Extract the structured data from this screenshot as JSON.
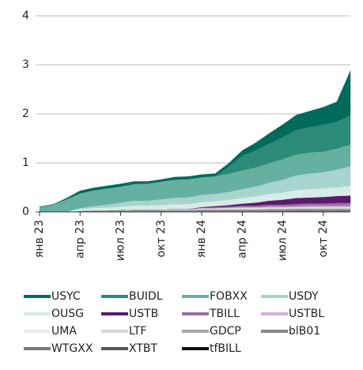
{
  "chart_data": {
    "type": "area",
    "stacked": true,
    "categories": [
      "янв 23",
      null,
      null,
      "апр 23",
      null,
      null,
      "июл 23",
      null,
      null,
      "окт 23",
      null,
      null,
      "янв 24",
      null,
      null,
      "апр 24",
      null,
      null,
      "июл 24",
      null,
      null,
      "окт 24",
      null,
      null
    ],
    "ylim": [
      0,
      4
    ],
    "yticks": [
      0,
      1,
      2,
      3,
      4
    ],
    "grid": true,
    "series": [
      {
        "name": "USYC",
        "color": "#006b5b",
        "values": [
          0,
          0,
          0.02,
          0.05,
          0.05,
          0.05,
          0.05,
          0.05,
          0.04,
          0.04,
          0.05,
          0.05,
          0.05,
          0.05,
          0.06,
          0.1,
          0.15,
          0.2,
          0.25,
          0.3,
          0.32,
          0.35,
          0.4,
          0.9
        ]
      },
      {
        "name": "BUIDL",
        "color": "#2b8a78",
        "values": [
          0,
          0,
          0,
          0,
          0,
          0,
          0,
          0,
          0,
          0,
          0,
          0,
          0,
          0,
          0.15,
          0.3,
          0.35,
          0.4,
          0.45,
          0.5,
          0.52,
          0.55,
          0.55,
          0.6
        ]
      },
      {
        "name": "FOBXX",
        "color": "#66b0a2",
        "values": [
          0.1,
          0.15,
          0.25,
          0.3,
          0.32,
          0.33,
          0.33,
          0.34,
          0.35,
          0.36,
          0.37,
          0.37,
          0.36,
          0.36,
          0.37,
          0.38,
          0.39,
          0.4,
          0.42,
          0.43,
          0.43,
          0.42,
          0.43,
          0.44
        ]
      },
      {
        "name": "USDY",
        "color": "#a7d4cc",
        "values": [
          0,
          0,
          0,
          0.02,
          0.04,
          0.06,
          0.08,
          0.1,
          0.1,
          0.12,
          0.13,
          0.14,
          0.15,
          0.15,
          0.16,
          0.18,
          0.2,
          0.23,
          0.26,
          0.3,
          0.32,
          0.33,
          0.36,
          0.4
        ]
      },
      {
        "name": "OUSG",
        "color": "#d5ece7",
        "values": [
          0,
          0,
          0.01,
          0.04,
          0.05,
          0.06,
          0.07,
          0.08,
          0.08,
          0.09,
          0.1,
          0.1,
          0.1,
          0.1,
          0.11,
          0.12,
          0.13,
          0.14,
          0.15,
          0.16,
          0.17,
          0.18,
          0.18,
          0.2
        ]
      },
      {
        "name": "USTB",
        "color": "#5a1a6b",
        "values": [
          0,
          0,
          0,
          0,
          0,
          0,
          0,
          0,
          0,
          0,
          0,
          0,
          0.01,
          0.02,
          0.03,
          0.04,
          0.06,
          0.08,
          0.1,
          0.12,
          0.12,
          0.13,
          0.14,
          0.15
        ]
      },
      {
        "name": "TBILL",
        "color": "#9b6fa8",
        "values": [
          0,
          0,
          0,
          0,
          0,
          0,
          0,
          0,
          0,
          0,
          0.01,
          0.01,
          0.01,
          0.02,
          0.02,
          0.03,
          0.03,
          0.04,
          0.04,
          0.05,
          0.05,
          0.05,
          0.06,
          0.06
        ]
      },
      {
        "name": "USTBL",
        "color": "#cfb4d6",
        "values": [
          0,
          0,
          0,
          0,
          0,
          0,
          0,
          0,
          0,
          0,
          0,
          0,
          0.01,
          0.01,
          0.01,
          0.02,
          0.02,
          0.02,
          0.02,
          0.02,
          0.03,
          0.03,
          0.03,
          0.03
        ]
      },
      {
        "name": "UMA",
        "color": "#ececec",
        "values": [
          0,
          0,
          0,
          0,
          0,
          0,
          0,
          0.01,
          0.01,
          0.01,
          0.01,
          0.01,
          0.01,
          0.01,
          0.01,
          0.01,
          0.01,
          0.01,
          0.01,
          0.01,
          0.01,
          0.01,
          0.01,
          0.01
        ]
      },
      {
        "name": "LTF",
        "color": "#d6d6d6",
        "values": [
          0,
          0,
          0,
          0,
          0,
          0,
          0,
          0,
          0,
          0,
          0,
          0,
          0.01,
          0.01,
          0.02,
          0.02,
          0.02,
          0.02,
          0.02,
          0.02,
          0.02,
          0.02,
          0.02,
          0.02
        ]
      },
      {
        "name": "GDCP",
        "color": "#a8a8a8",
        "values": [
          0,
          0,
          0,
          0,
          0,
          0,
          0.01,
          0.01,
          0.01,
          0.01,
          0.01,
          0.01,
          0.01,
          0.01,
          0.01,
          0.01,
          0.01,
          0.01,
          0.01,
          0.01,
          0.01,
          0.01,
          0.01,
          0.01
        ]
      },
      {
        "name": "blB01",
        "color": "#888888",
        "values": [
          0,
          0,
          0,
          0.02,
          0.03,
          0.03,
          0.03,
          0.03,
          0.03,
          0.03,
          0.03,
          0.03,
          0.03,
          0.03,
          0.03,
          0.03,
          0.03,
          0.03,
          0.03,
          0.03,
          0.03,
          0.03,
          0.03,
          0.03
        ]
      },
      {
        "name": "WTGXX",
        "color": "#777777",
        "values": [
          0,
          0,
          0,
          0,
          0,
          0,
          0,
          0,
          0,
          0,
          0,
          0,
          0.01,
          0.01,
          0.01,
          0.01,
          0.01,
          0.01,
          0.01,
          0.01,
          0.01,
          0.01,
          0.01,
          0.01
        ]
      },
      {
        "name": "XTBT",
        "color": "#555555",
        "values": [
          0,
          0,
          0,
          0,
          0,
          0,
          0,
          0,
          0,
          0,
          0,
          0,
          0,
          0,
          0,
          0,
          0,
          0.01,
          0.01,
          0.01,
          0.01,
          0.01,
          0.01,
          0.01
        ]
      },
      {
        "name": "tfBILL",
        "color": "#111111",
        "values": [
          0,
          0,
          0,
          0,
          0,
          0,
          0,
          0,
          0,
          0,
          0,
          0,
          0,
          0,
          0,
          0,
          0,
          0,
          0,
          0.005,
          0.005,
          0.005,
          0.005,
          0.005
        ]
      }
    ]
  }
}
